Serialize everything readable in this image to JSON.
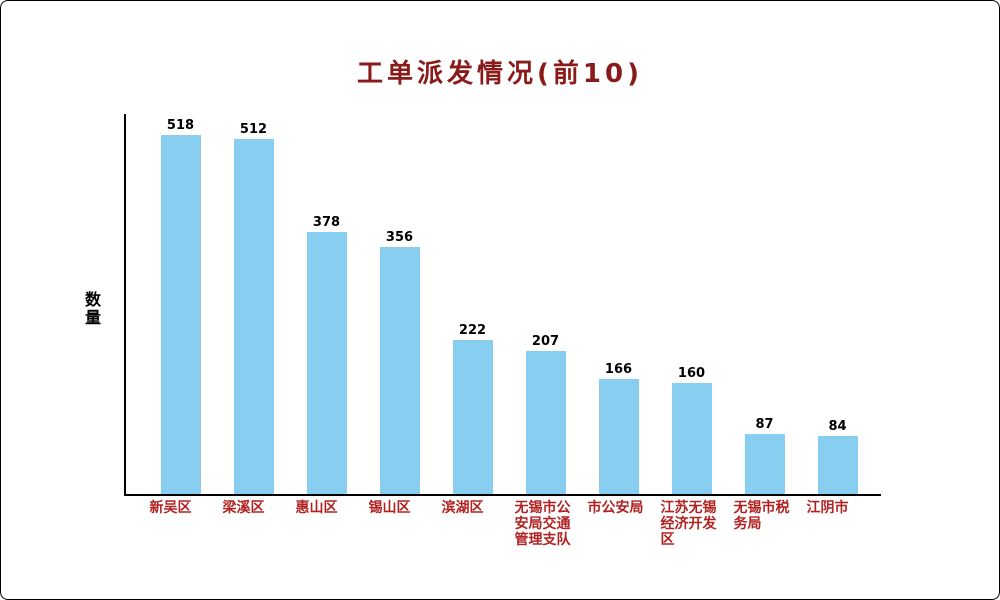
{
  "chart_data": {
    "type": "bar",
    "title": "工单派发情况(前10)",
    "ylabel": "数量",
    "categories": [
      "新吴区",
      "梁溪区",
      "惠山区",
      "锡山区",
      "滨湖区",
      "无锡市公安局交通管理支队",
      "市公安局",
      "江苏无锡经济开发区",
      "无锡市税务局",
      "江阴市"
    ],
    "values": [
      518,
      512,
      378,
      356,
      222,
      207,
      166,
      160,
      87,
      84
    ],
    "ylim": [
      0,
      560
    ],
    "grid": false,
    "legend": false,
    "bar_color": "#87cef0",
    "title_color": "#8b1a1a",
    "category_label_color": "#b22222",
    "value_label_color": "#000000",
    "axis_color": "#000000"
  }
}
